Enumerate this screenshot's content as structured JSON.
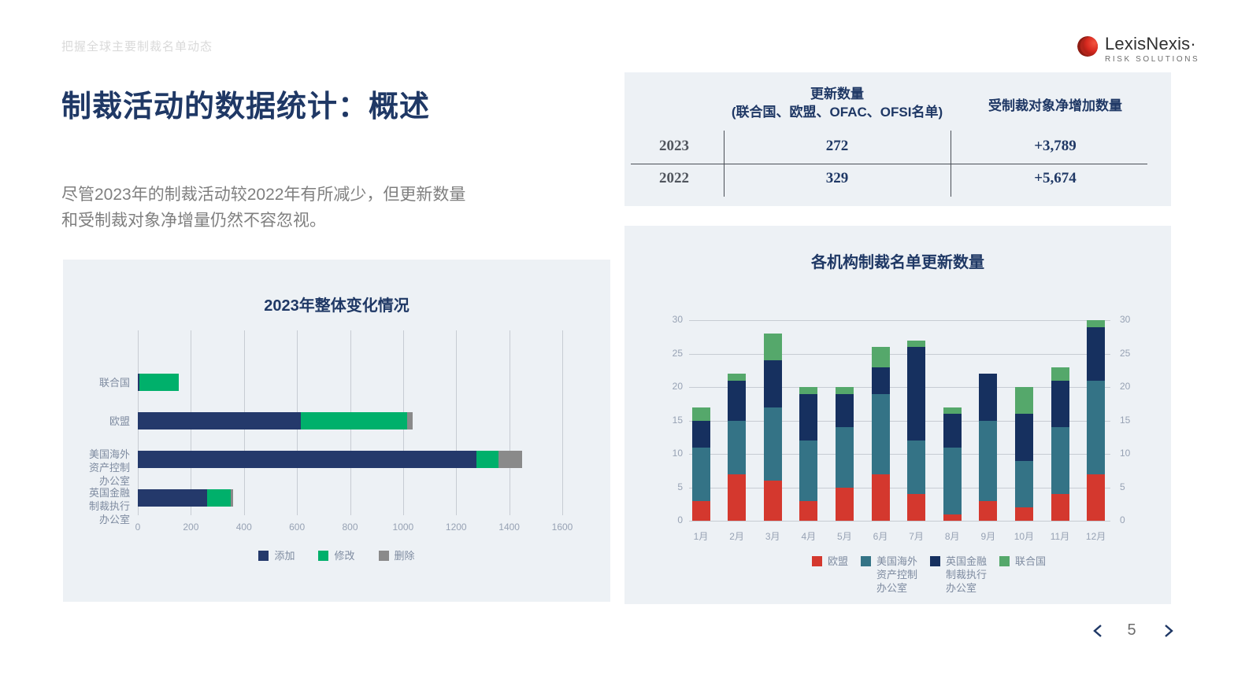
{
  "page": {
    "eyebrow": "把握全球主要制裁名单动态",
    "title": "制裁活动的数据统计：概述",
    "body_line1": "尽管2023年的制裁活动较2022年有所减少，但更新数量",
    "body_line2": "和受制裁对象净增量仍然不容忽视。",
    "page_number": "5"
  },
  "logo": {
    "name": "LexisNexis·",
    "tagline": "RISK SOLUTIONS"
  },
  "summary_table": {
    "col1_header_line1": "更新数量",
    "col1_header_line2": "(联合国、欧盟、OFAC、OFSI名单)",
    "col2_header": "受制裁对象净增加数量",
    "rows": [
      {
        "year": "2023",
        "updates": "272",
        "net_additions": "+3,789"
      },
      {
        "year": "2022",
        "updates": "329",
        "net_additions": "+5,674"
      }
    ]
  },
  "chart_data": [
    {
      "type": "bar",
      "orientation": "horizontal",
      "stacked": true,
      "title": "2023年整体变化情况",
      "categories": [
        "联合国",
        "欧盟",
        "美国海外资产控制办公室",
        "英国金融制裁执行办公室"
      ],
      "category_display": [
        [
          "联合国"
        ],
        [
          "欧盟"
        ],
        [
          "美国海外",
          "资产控制",
          "办公室"
        ],
        [
          "英国金融",
          "制裁执行",
          "办公室"
        ]
      ],
      "series": [
        {
          "name": "添加",
          "color": "#24396b",
          "values": [
            5,
            615,
            1275,
            262
          ]
        },
        {
          "name": "修改",
          "color": "#00b06b",
          "values": [
            150,
            400,
            85,
            88
          ]
        },
        {
          "name": "删除",
          "color": "#8a8a8a",
          "values": [
            0,
            20,
            90,
            10
          ]
        }
      ],
      "xlim": [
        0,
        1600
      ],
      "xticks": [
        0,
        200,
        400,
        600,
        800,
        1000,
        1200,
        1400,
        1600
      ],
      "grid": "vertical",
      "legend_position": "bottom"
    },
    {
      "type": "bar",
      "orientation": "vertical",
      "stacked": true,
      "title": "各机构制裁名单更新数量",
      "categories": [
        "1月",
        "2月",
        "3月",
        "4月",
        "5月",
        "6月",
        "7月",
        "8月",
        "9月",
        "10月",
        "11月",
        "12月"
      ],
      "series": [
        {
          "name": "欧盟",
          "legend_lines": [
            "欧盟"
          ],
          "color": "#d4382e",
          "values": [
            3,
            7,
            6,
            3,
            5,
            7,
            4,
            1,
            3,
            2,
            4,
            7
          ]
        },
        {
          "name": "美国海外资产控制办公室",
          "legend_lines": [
            "美国海外",
            "资产控制",
            "办公室"
          ],
          "color": "#347386",
          "values": [
            8,
            8,
            11,
            9,
            9,
            12,
            8,
            10,
            12,
            7,
            10,
            14
          ]
        },
        {
          "name": "英国金融制裁执行办公室",
          "legend_lines": [
            "英国金融",
            "制裁执行",
            "办公室"
          ],
          "color": "#16305f",
          "values": [
            4,
            6,
            7,
            7,
            5,
            4,
            14,
            5,
            7,
            7,
            7,
            8
          ]
        },
        {
          "name": "联合国",
          "legend_lines": [
            "联合国"
          ],
          "color": "#55a86b",
          "values": [
            2,
            1,
            4,
            1,
            1,
            3,
            1,
            1,
            0,
            4,
            2,
            1
          ]
        }
      ],
      "ylim": [
        0,
        30
      ],
      "yticks": [
        0,
        5,
        10,
        15,
        20,
        25,
        30
      ],
      "grid": "horizontal",
      "legend_position": "bottom",
      "y_axis_sides": "both"
    }
  ]
}
